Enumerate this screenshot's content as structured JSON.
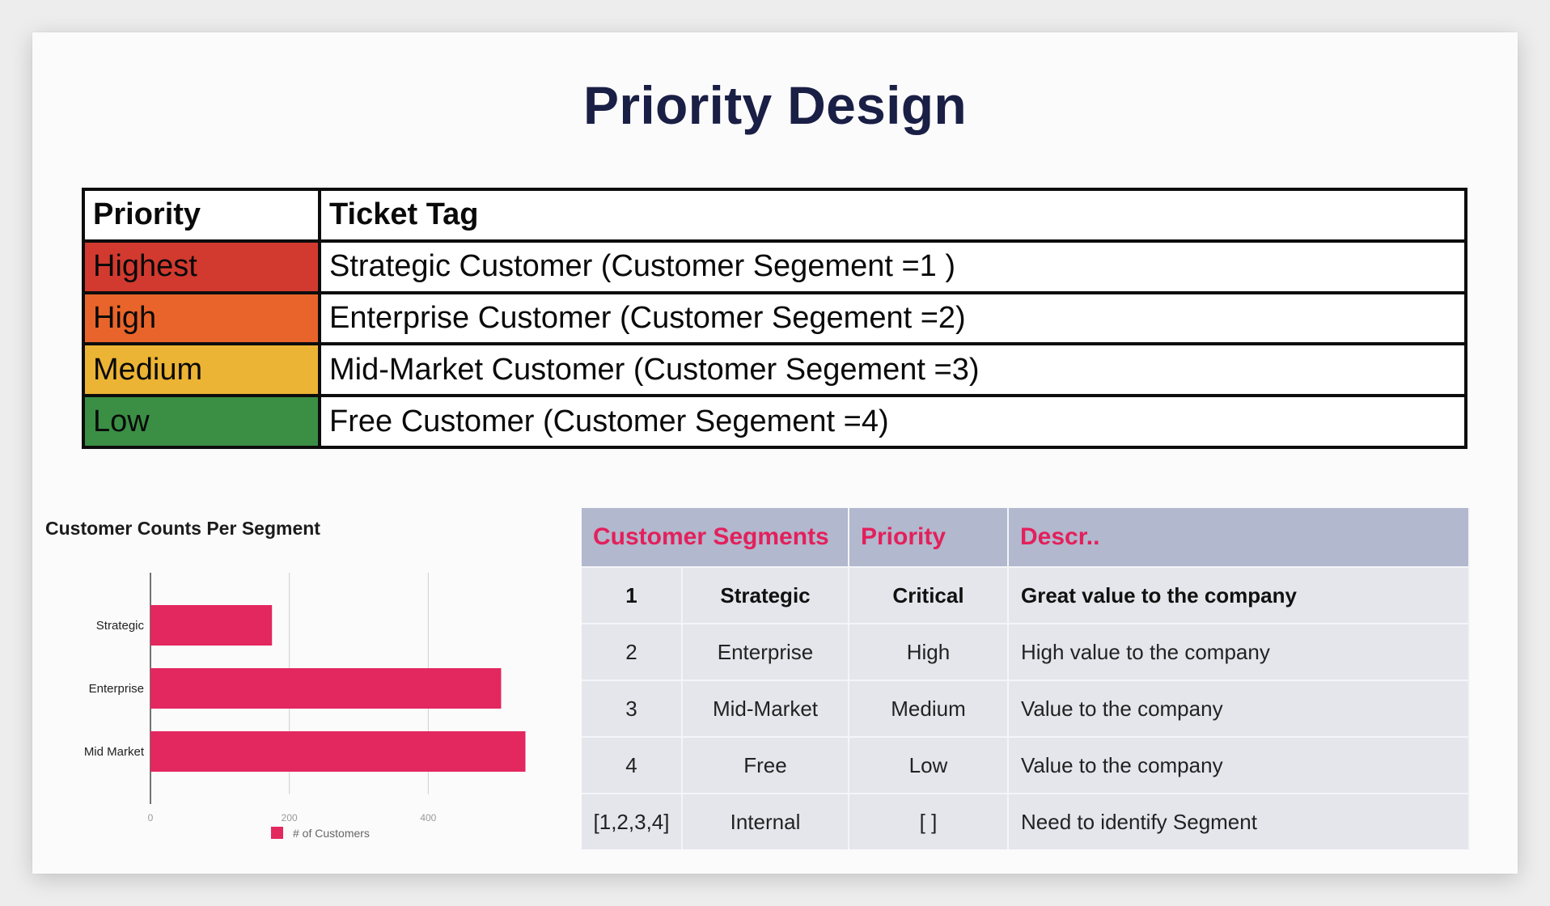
{
  "title": "Priority Design",
  "priority_table": {
    "headers": [
      "Priority",
      "Ticket Tag"
    ],
    "rows": [
      {
        "priority": "Highest",
        "tag": "Strategic Customer (Customer Segement =1 )",
        "color": "#d23a2f"
      },
      {
        "priority": "High",
        "tag": "Enterprise Customer (Customer Segement =2)",
        "color": "#e9642a"
      },
      {
        "priority": "Medium",
        "tag": "Mid-Market Customer (Customer Segement =3)",
        "color": "#ecb434"
      },
      {
        "priority": "Low",
        "tag": "Free Customer (Customer Segement =4)",
        "color": "#3a8f44"
      }
    ]
  },
  "chart_data": {
    "type": "bar",
    "orientation": "horizontal",
    "title": "Customer Counts Per Segment",
    "categories": [
      "Strategic",
      "Enterprise",
      "Mid Market"
    ],
    "series": [
      {
        "name": "# of Customers",
        "values": [
          175,
          505,
          540
        ],
        "color": "#e3275f"
      }
    ],
    "xlim": [
      0,
      600
    ],
    "xticks": [
      0,
      200,
      400,
      600
    ],
    "grid": true,
    "legend_position": "bottom"
  },
  "segments_table": {
    "headers": [
      "Customer Segments",
      "Priority",
      "Descr.."
    ],
    "rows": [
      {
        "id": "1",
        "segment": "Strategic",
        "priority": "Critical",
        "description": "Great value to the company"
      },
      {
        "id": "2",
        "segment": "Enterprise",
        "priority": "High",
        "description": "High value to the company"
      },
      {
        "id": "3",
        "segment": "Mid-Market",
        "priority": "Medium",
        "description": "Value to the company"
      },
      {
        "id": "4",
        "segment": "Free",
        "priority": "Low",
        "description": "Value to the company"
      },
      {
        "id": "[1,2,3,4]",
        "segment": "Internal",
        "priority": "[ ]",
        "description": "Need to identify Segment"
      }
    ]
  }
}
